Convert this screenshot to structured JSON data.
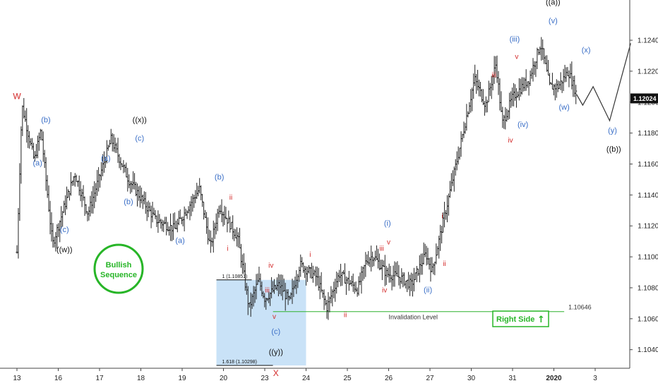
{
  "chart_data": {
    "type": "ohlc",
    "x_ticks": [
      {
        "label": "13",
        "day": 0
      },
      {
        "label": "16",
        "day": 1
      },
      {
        "label": "17",
        "day": 2
      },
      {
        "label": "18",
        "day": 3
      },
      {
        "label": "19",
        "day": 4
      },
      {
        "label": "20",
        "day": 5
      },
      {
        "label": "23",
        "day": 6
      },
      {
        "label": "24",
        "day": 7
      },
      {
        "label": "25",
        "day": 8
      },
      {
        "label": "26",
        "day": 9
      },
      {
        "label": "27",
        "day": 10
      },
      {
        "label": "30",
        "day": 11
      },
      {
        "label": "31",
        "day": 12
      },
      {
        "label": "2020",
        "day": 13
      },
      {
        "label": "3",
        "day": 14
      }
    ],
    "y_ticks": [
      "1.12400",
      "1.12200",
      "1.12000",
      "1.11800",
      "1.11600",
      "1.11400",
      "1.11200",
      "1.11000",
      "1.10800",
      "1.10600",
      "1.10400"
    ],
    "ylim": [
      1.1028,
      1.1266
    ],
    "xlim": [
      -0.2,
      14.9
    ],
    "price_label": "1.12024",
    "price_value": 1.12024,
    "colors": {
      "bar": "#222222",
      "blue": "#3b6fc7",
      "red": "#d32a2a",
      "black": "#111111",
      "green": "#27b527",
      "box": "#c9e2f7"
    },
    "path_points": [
      [
        0.0,
        1.1103
      ],
      [
        0.12,
        1.1198
      ],
      [
        0.42,
        1.1162
      ],
      [
        0.58,
        1.1182
      ],
      [
        0.86,
        1.1108
      ],
      [
        1.4,
        1.1154
      ],
      [
        1.72,
        1.1128
      ],
      [
        2.28,
        1.1176
      ],
      [
        2.7,
        1.115
      ],
      [
        3.35,
        1.1124
      ],
      [
        3.82,
        1.1118
      ],
      [
        4.42,
        1.1144
      ],
      [
        4.68,
        1.1106
      ],
      [
        4.9,
        1.1133
      ],
      [
        5.35,
        1.1112
      ],
      [
        5.62,
        1.1067
      ],
      [
        5.85,
        1.1085
      ],
      [
        6.0,
        1.1073
      ],
      [
        6.35,
        1.1082
      ],
      [
        6.6,
        1.1071
      ],
      [
        6.85,
        1.1095
      ],
      [
        7.25,
        1.1087
      ],
      [
        7.5,
        1.1067
      ],
      [
        7.8,
        1.1089
      ],
      [
        8.25,
        1.1079
      ],
      [
        8.45,
        1.1097
      ],
      [
        8.62,
        1.1101
      ],
      [
        8.95,
        1.1089
      ],
      [
        9.25,
        1.1087
      ],
      [
        9.55,
        1.1082
      ],
      [
        9.9,
        1.1102
      ],
      [
        10.05,
        1.1091
      ],
      [
        10.3,
        1.112
      ],
      [
        10.8,
        1.118
      ],
      [
        11.08,
        1.1215
      ],
      [
        11.35,
        1.1198
      ],
      [
        11.6,
        1.1225
      ],
      [
        11.75,
        1.1186
      ],
      [
        12.0,
        1.1203
      ],
      [
        12.4,
        1.1215
      ],
      [
        12.68,
        1.1238
      ],
      [
        12.9,
        1.121
      ],
      [
        13.1,
        1.121
      ],
      [
        13.35,
        1.122
      ],
      [
        13.55,
        1.1205
      ]
    ],
    "projection": [
      [
        13.55,
        1.1205
      ],
      [
        13.7,
        1.1198
      ],
      [
        13.95,
        1.121
      ],
      [
        14.35,
        1.1188
      ],
      [
        14.86,
        1.1238
      ]
    ],
    "waves": [
      {
        "text": "W",
        "day": 0.0,
        "price": 1.1202,
        "color": "red",
        "size": 12
      },
      {
        "text": "(a)",
        "day": 0.5,
        "price": 1.1159,
        "color": "blue",
        "size": 11
      },
      {
        "text": "(b)",
        "day": 0.7,
        "price": 1.1187,
        "color": "blue",
        "size": 11
      },
      {
        "text": "(c)",
        "day": 1.15,
        "price": 1.1116,
        "color": "blue",
        "size": 11
      },
      {
        "text": "((w))",
        "day": 1.15,
        "price": 1.1103,
        "color": "black",
        "size": 11
      },
      {
        "text": "(a)",
        "day": 2.15,
        "price": 1.1162,
        "color": "blue",
        "size": 11
      },
      {
        "text": "(b)",
        "day": 2.7,
        "price": 1.1134,
        "color": "blue",
        "size": 11
      },
      {
        "text": "((x))",
        "day": 2.97,
        "price": 1.1187,
        "color": "black",
        "size": 11
      },
      {
        "text": "(c)",
        "day": 2.97,
        "price": 1.1175,
        "color": "blue",
        "size": 11
      },
      {
        "text": "(a)",
        "day": 3.95,
        "price": 1.1109,
        "color": "blue",
        "size": 11
      },
      {
        "text": "(b)",
        "day": 4.9,
        "price": 1.115,
        "color": "blue",
        "size": 11
      },
      {
        "text": "ii",
        "day": 5.18,
        "price": 1.1137,
        "color": "red",
        "size": 10
      },
      {
        "text": "i",
        "day": 5.1,
        "price": 1.1104,
        "color": "red",
        "size": 10
      },
      {
        "text": "iv",
        "day": 6.15,
        "price": 1.1093,
        "color": "red",
        "size": 10
      },
      {
        "text": "iii",
        "day": 6.06,
        "price": 1.1077,
        "color": "red",
        "size": 10
      },
      {
        "text": "v",
        "day": 6.23,
        "price": 1.106,
        "color": "red",
        "size": 10
      },
      {
        "text": "(c)",
        "day": 6.27,
        "price": 1.105,
        "color": "blue",
        "size": 11
      },
      {
        "text": "((y))",
        "day": 6.27,
        "price": 1.1037,
        "color": "black",
        "size": 11
      },
      {
        "text": "X",
        "day": 6.27,
        "price": 1.1023,
        "color": "red",
        "size": 12
      },
      {
        "text": "i",
        "day": 7.1,
        "price": 1.11,
        "color": "red",
        "size": 10
      },
      {
        "text": "ii",
        "day": 7.95,
        "price": 1.1061,
        "color": "red",
        "size": 10
      },
      {
        "text": "iii",
        "day": 8.83,
        "price": 1.1104,
        "color": "red",
        "size": 10
      },
      {
        "text": "v",
        "day": 9.0,
        "price": 1.1108,
        "color": "red",
        "size": 10
      },
      {
        "text": "(i)",
        "day": 8.97,
        "price": 1.112,
        "color": "blue",
        "size": 11
      },
      {
        "text": "iv",
        "day": 8.9,
        "price": 1.1077,
        "color": "red",
        "size": 10
      },
      {
        "text": "(ii)",
        "day": 9.95,
        "price": 1.1077,
        "color": "blue",
        "size": 11
      },
      {
        "text": "i",
        "day": 10.3,
        "price": 1.1125,
        "color": "red",
        "size": 10
      },
      {
        "text": "ii",
        "day": 10.35,
        "price": 1.1094,
        "color": "red",
        "size": 10
      },
      {
        "text": "iii",
        "day": 11.55,
        "price": 1.1216,
        "color": "red",
        "size": 10
      },
      {
        "text": "v",
        "day": 12.1,
        "price": 1.1228,
        "color": "red",
        "size": 10
      },
      {
        "text": "(iii)",
        "day": 12.05,
        "price": 1.1239,
        "color": "blue",
        "size": 11
      },
      {
        "text": "iv",
        "day": 11.95,
        "price": 1.1174,
        "color": "red",
        "size": 10
      },
      {
        "text": "(iv)",
        "day": 12.25,
        "price": 1.1184,
        "color": "blue",
        "size": 11
      },
      {
        "text": "((a))",
        "day": 12.98,
        "price": 1.1263,
        "color": "black",
        "size": 11
      },
      {
        "text": "(v)",
        "day": 12.98,
        "price": 1.1251,
        "color": "blue",
        "size": 11
      },
      {
        "text": "(w)",
        "day": 13.25,
        "price": 1.1195,
        "color": "blue",
        "size": 11
      },
      {
        "text": "(x)",
        "day": 13.78,
        "price": 1.1232,
        "color": "blue",
        "size": 11
      },
      {
        "text": "(y)",
        "day": 14.42,
        "price": 1.118,
        "color": "blue",
        "size": 11
      },
      {
        "text": "((b))",
        "day": 14.45,
        "price": 1.1168,
        "color": "black",
        "size": 11
      }
    ],
    "box": {
      "day_start": 4.83,
      "day_end": 7.0,
      "price_top": 1.10851,
      "price_bottom": 1.10298,
      "top_label": "1 (1.10851)",
      "bottom_label": "1.618 (1.10298)"
    },
    "invalidation": {
      "day_start": 6.2,
      "day_end": 13.25,
      "price": 1.10646,
      "label": "Invalidation Level",
      "value_label": "1.10646"
    },
    "badge": {
      "line1": "Bullish",
      "line2": "Sequence"
    },
    "right_side": {
      "label": "Right Side",
      "arrow": "↑"
    }
  }
}
